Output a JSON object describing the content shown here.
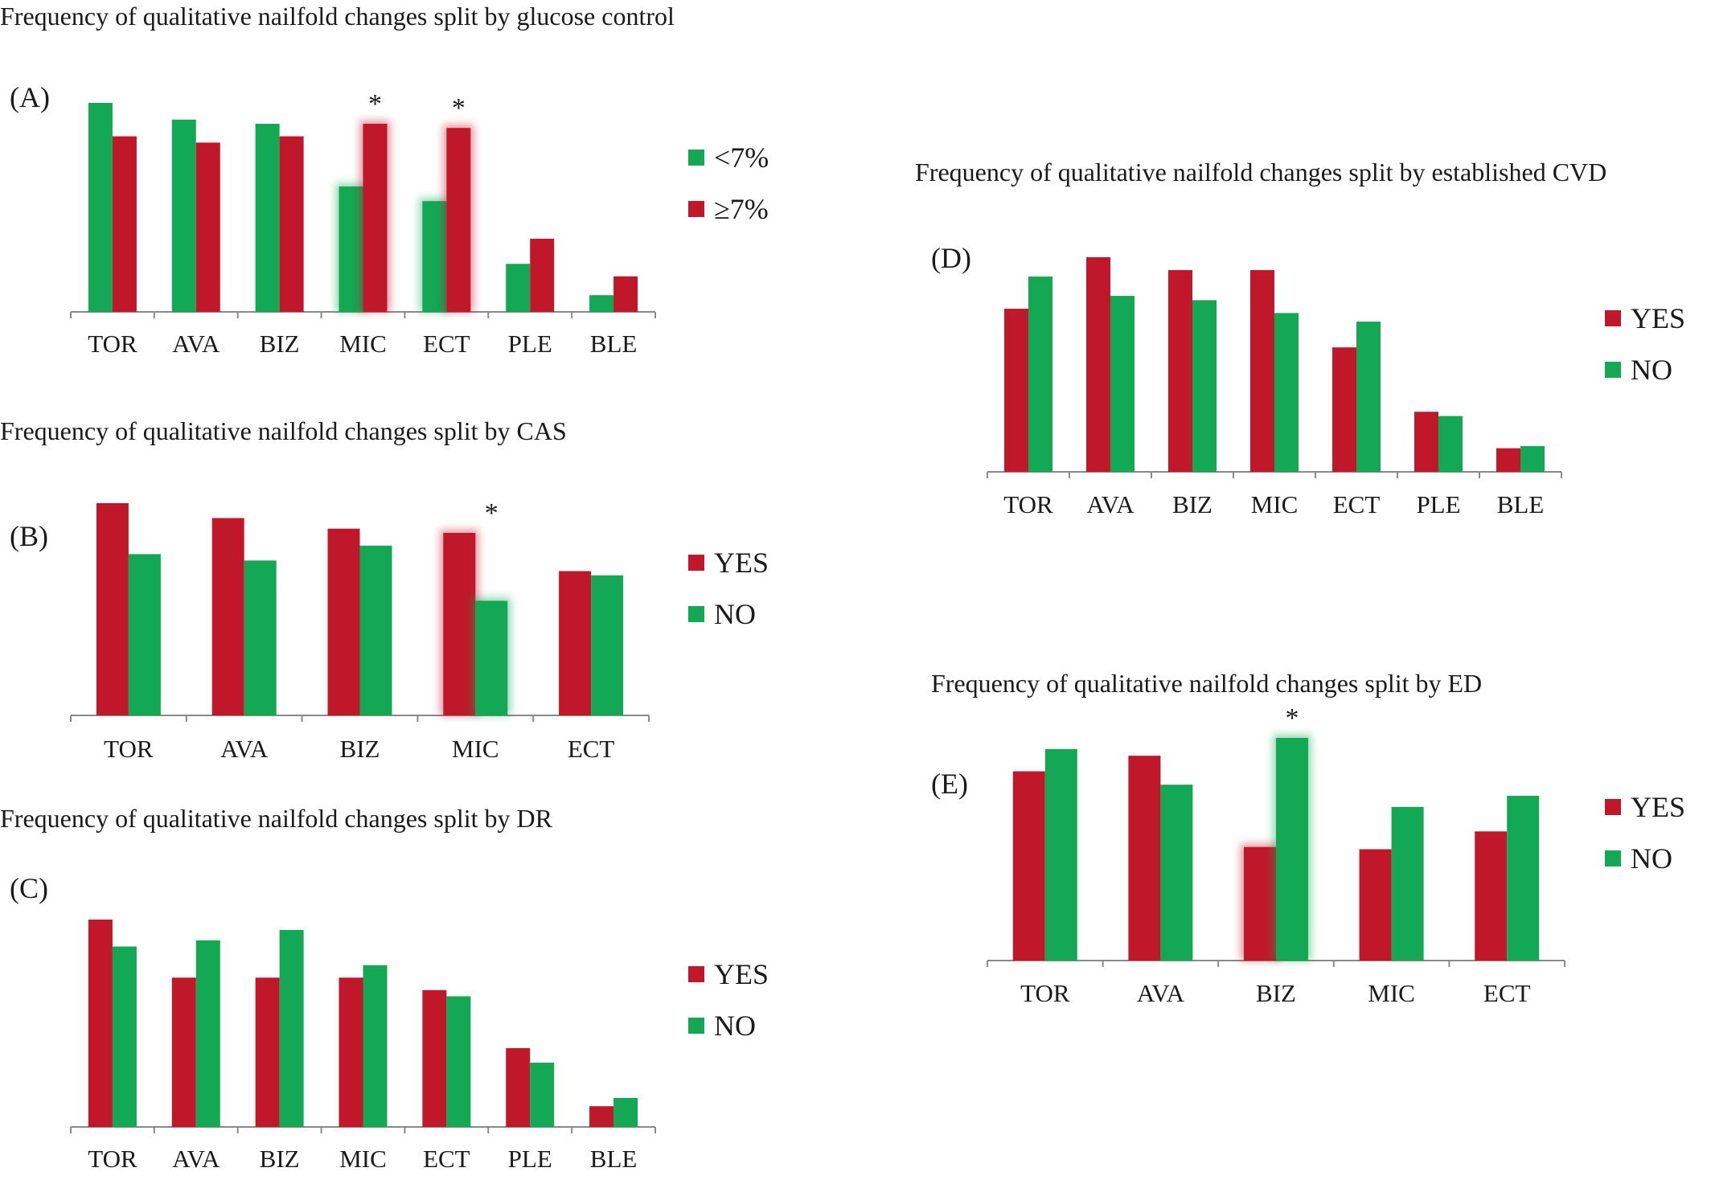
{
  "colors": {
    "red": "#c0182a",
    "green": "#13a853"
  },
  "chart_data": [
    {
      "id": "A",
      "type": "bar",
      "panel_label": "(A)",
      "title": "Frequency of qualitative nailfold changes split by glucose control",
      "categories": [
        "TOR",
        "AVA",
        "BIZ",
        "MIC",
        "ECT",
        "PLE",
        "BLE"
      ],
      "series": [
        {
          "name": "<7%",
          "color": "green",
          "values": [
            100,
            92,
            90,
            60,
            53,
            23,
            8
          ]
        },
        {
          "name": "≥7%",
          "color": "red",
          "values": [
            84,
            81,
            84,
            90,
            88,
            35,
            17
          ]
        }
      ],
      "significant": [
        "MIC",
        "ECT"
      ],
      "ylim": [
        0,
        100
      ],
      "grid": false,
      "legend_position": "right"
    },
    {
      "id": "B",
      "type": "bar",
      "panel_label": "(B)",
      "title": "Frequency of qualitative nailfold changes split by CAS",
      "categories": [
        "TOR",
        "AVA",
        "BIZ",
        "MIC",
        "ECT"
      ],
      "series": [
        {
          "name": "YES",
          "color": "red",
          "values": [
            100,
            93,
            88,
            86,
            68
          ]
        },
        {
          "name": "NO",
          "color": "green",
          "values": [
            76,
            73,
            80,
            54,
            66
          ]
        }
      ],
      "significant": [
        "MIC"
      ],
      "ylim": [
        0,
        100
      ],
      "grid": false,
      "legend_position": "right"
    },
    {
      "id": "C",
      "type": "bar",
      "panel_label": "(C)",
      "title": "Frequency of qualitative nailfold changes split by DR",
      "categories": [
        "TOR",
        "AVA",
        "BIZ",
        "MIC",
        "ECT",
        "PLE",
        "BLE"
      ],
      "series": [
        {
          "name": "YES",
          "color": "red",
          "values": [
            100,
            72,
            72,
            72,
            66,
            38,
            10
          ]
        },
        {
          "name": "NO",
          "color": "green",
          "values": [
            87,
            90,
            95,
            78,
            63,
            31,
            14
          ]
        }
      ],
      "significant": [],
      "ylim": [
        0,
        100
      ],
      "grid": false,
      "legend_position": "right"
    },
    {
      "id": "D",
      "type": "bar",
      "panel_label": "(D)",
      "title": "Frequency of qualitative nailfold changes split by established CVD",
      "categories": [
        "TOR",
        "AVA",
        "BIZ",
        "MIC",
        "ECT",
        "PLE",
        "BLE"
      ],
      "series": [
        {
          "name": "YES",
          "color": "red",
          "values": [
            76,
            100,
            94,
            94,
            58,
            28,
            11
          ]
        },
        {
          "name": "NO",
          "color": "green",
          "values": [
            91,
            82,
            80,
            74,
            70,
            26,
            12
          ]
        }
      ],
      "significant": [],
      "ylim": [
        0,
        100
      ],
      "grid": false,
      "legend_position": "right"
    },
    {
      "id": "E",
      "type": "bar",
      "panel_label": "(E)",
      "title": "Frequency of qualitative nailfold changes split by ED",
      "categories": [
        "TOR",
        "AVA",
        "BIZ",
        "MIC",
        "ECT"
      ],
      "series": [
        {
          "name": "YES",
          "color": "red",
          "values": [
            85,
            92,
            51,
            50,
            58
          ]
        },
        {
          "name": "NO",
          "color": "green",
          "values": [
            95,
            79,
            100,
            69,
            74
          ]
        }
      ],
      "significant": [
        "BIZ"
      ],
      "ylim": [
        0,
        100
      ],
      "grid": false,
      "legend_position": "right"
    }
  ]
}
